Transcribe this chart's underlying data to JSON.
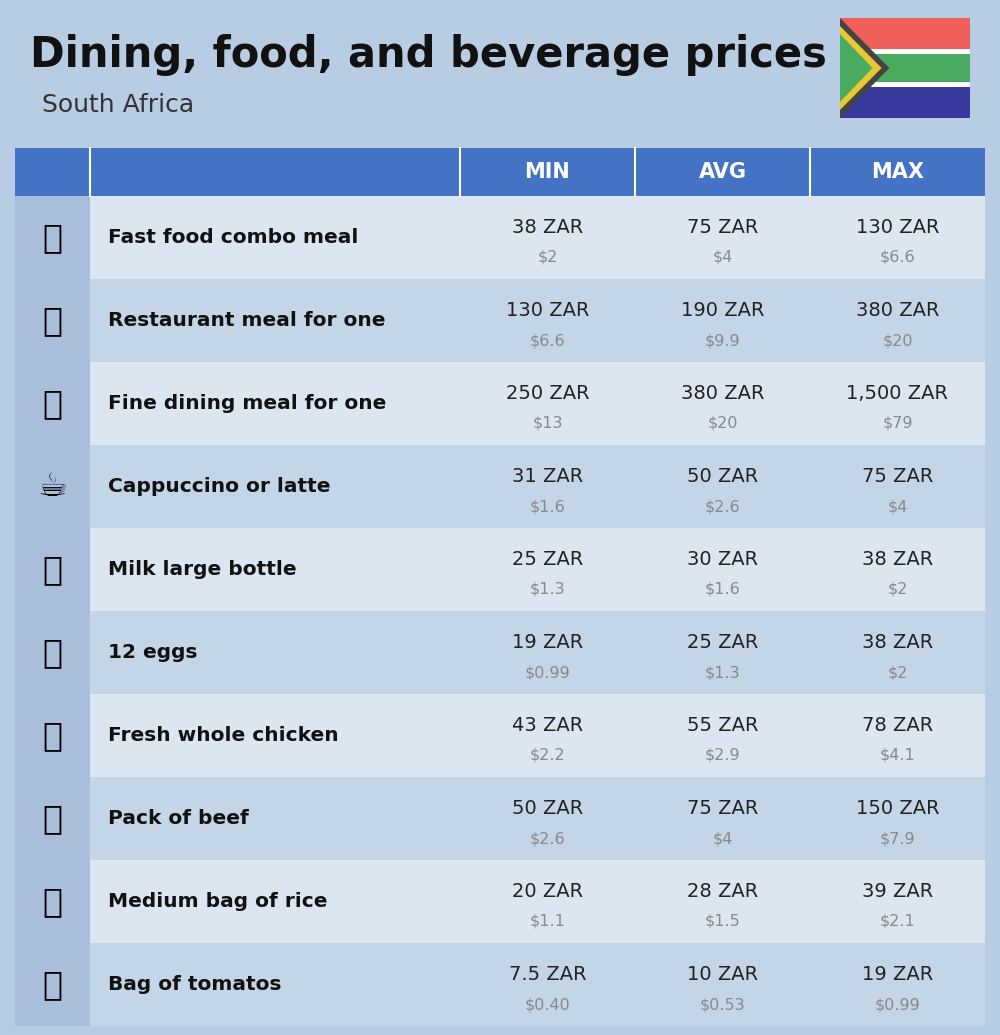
{
  "title": "Dining, food, and beverage prices",
  "subtitle": "South Africa",
  "bg_color": "#b8cce4",
  "header_color": "#4472c4",
  "header_text_color": "#ffffff",
  "row_color_light": "#dce6f1",
  "row_color_dark": "#c5d5e8",
  "icon_col_bg": "#a8bedb",
  "headers": [
    "MIN",
    "AVG",
    "MAX"
  ],
  "rows": [
    {
      "label": "Fast food combo meal",
      "min_zar": "38 ZAR",
      "min_usd": "$2",
      "avg_zar": "75 ZAR",
      "avg_usd": "$4",
      "max_zar": "130 ZAR",
      "max_usd": "$6.6"
    },
    {
      "label": "Restaurant meal for one",
      "min_zar": "130 ZAR",
      "min_usd": "$6.6",
      "avg_zar": "190 ZAR",
      "avg_usd": "$9.9",
      "max_zar": "380 ZAR",
      "max_usd": "$20"
    },
    {
      "label": "Fine dining meal for one",
      "min_zar": "250 ZAR",
      "min_usd": "$13",
      "avg_zar": "380 ZAR",
      "avg_usd": "$20",
      "max_zar": "1,500 ZAR",
      "max_usd": "$79"
    },
    {
      "label": "Cappuccino or latte",
      "min_zar": "31 ZAR",
      "min_usd": "$1.6",
      "avg_zar": "50 ZAR",
      "avg_usd": "$2.6",
      "max_zar": "75 ZAR",
      "max_usd": "$4"
    },
    {
      "label": "Milk large bottle",
      "min_zar": "25 ZAR",
      "min_usd": "$1.3",
      "avg_zar": "30 ZAR",
      "avg_usd": "$1.6",
      "max_zar": "38 ZAR",
      "max_usd": "$2"
    },
    {
      "label": "12 eggs",
      "min_zar": "19 ZAR",
      "min_usd": "$0.99",
      "avg_zar": "25 ZAR",
      "avg_usd": "$1.3",
      "max_zar": "38 ZAR",
      "max_usd": "$2"
    },
    {
      "label": "Fresh whole chicken",
      "min_zar": "43 ZAR",
      "min_usd": "$2.2",
      "avg_zar": "55 ZAR",
      "avg_usd": "$2.9",
      "max_zar": "78 ZAR",
      "max_usd": "$4.1"
    },
    {
      "label": "Pack of beef",
      "min_zar": "50 ZAR",
      "min_usd": "$2.6",
      "avg_zar": "75 ZAR",
      "avg_usd": "$4",
      "max_zar": "150 ZAR",
      "max_usd": "$7.9"
    },
    {
      "label": "Medium bag of rice",
      "min_zar": "20 ZAR",
      "min_usd": "$1.1",
      "avg_zar": "28 ZAR",
      "avg_usd": "$1.5",
      "max_zar": "39 ZAR",
      "max_usd": "$2.1"
    },
    {
      "label": "Bag of tomatos",
      "min_zar": "7.5 ZAR",
      "min_usd": "$0.40",
      "avg_zar": "10 ZAR",
      "avg_usd": "$0.53",
      "max_zar": "19 ZAR",
      "max_usd": "$0.99"
    }
  ],
  "flag_colors": {
    "red": "#f0605a",
    "blue": "#3a3a9e",
    "green": "#4aaa60",
    "dark_green": "#3a8c4e",
    "black": "#444444",
    "white": "#ffffff",
    "yellow": "#e8c830"
  }
}
